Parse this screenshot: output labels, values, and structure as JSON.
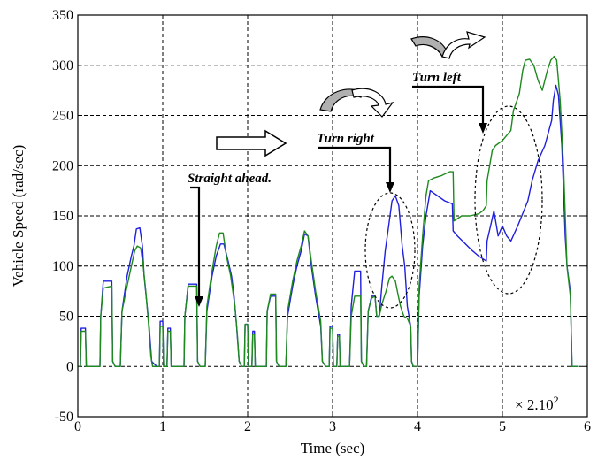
{
  "chart_data": {
    "type": "line",
    "title": "",
    "xlabel": "Time (sec)",
    "ylabel": "Vehicle Speed (rad/sec)",
    "xlim": [
      0,
      6
    ],
    "ylim": [
      -50,
      350
    ],
    "xticks": [
      0,
      1,
      2,
      3,
      4,
      5,
      6
    ],
    "yticks": [
      -50,
      0,
      50,
      100,
      150,
      200,
      250,
      300,
      350
    ],
    "grid": true,
    "x_multiplier_label": "× 2.10",
    "x_multiplier_exponent": "2",
    "annotations": [
      {
        "text": "Straight ahead.",
        "x": 1.35,
        "y": 188
      },
      {
        "text": "Turn right",
        "x": 2.95,
        "y": 224
      },
      {
        "text": "Turn left",
        "x": 4.0,
        "y": 285
      }
    ],
    "colors": {
      "series1": "#1f1fdd",
      "series2": "#1e8a1e"
    },
    "series": [
      {
        "color": "#1f1fdd",
        "points": [
          [
            0.0,
            0
          ],
          [
            0.03,
            0
          ],
          [
            0.04,
            38
          ],
          [
            0.09,
            38
          ],
          [
            0.1,
            0
          ],
          [
            0.26,
            0
          ],
          [
            0.27,
            50
          ],
          [
            0.3,
            85
          ],
          [
            0.4,
            85
          ],
          [
            0.41,
            5
          ],
          [
            0.44,
            0
          ],
          [
            0.5,
            0
          ],
          [
            0.52,
            55
          ],
          [
            0.58,
            90
          ],
          [
            0.63,
            110
          ],
          [
            0.66,
            120
          ],
          [
            0.69,
            137
          ],
          [
            0.73,
            138
          ],
          [
            0.76,
            120
          ],
          [
            0.78,
            90
          ],
          [
            0.81,
            65
          ],
          [
            0.84,
            40
          ],
          [
            0.87,
            5
          ],
          [
            0.93,
            0
          ],
          [
            0.96,
            0
          ],
          [
            0.97,
            45
          ],
          [
            1.0,
            45
          ],
          [
            1.01,
            0
          ],
          [
            1.05,
            0
          ],
          [
            1.06,
            38
          ],
          [
            1.09,
            38
          ],
          [
            1.1,
            0
          ],
          [
            1.25,
            0
          ],
          [
            1.26,
            50
          ],
          [
            1.3,
            82
          ],
          [
            1.4,
            82
          ],
          [
            1.41,
            5
          ],
          [
            1.44,
            0
          ],
          [
            1.5,
            0
          ],
          [
            1.52,
            55
          ],
          [
            1.58,
            90
          ],
          [
            1.63,
            110
          ],
          [
            1.68,
            122
          ],
          [
            1.72,
            122
          ],
          [
            1.77,
            105
          ],
          [
            1.81,
            90
          ],
          [
            1.84,
            70
          ],
          [
            1.87,
            40
          ],
          [
            1.9,
            5
          ],
          [
            1.93,
            0
          ],
          [
            1.96,
            0
          ],
          [
            1.97,
            42
          ],
          [
            2.0,
            42
          ],
          [
            2.01,
            0
          ],
          [
            2.05,
            0
          ],
          [
            2.06,
            35
          ],
          [
            2.08,
            35
          ],
          [
            2.09,
            0
          ],
          [
            2.22,
            0
          ],
          [
            2.23,
            55
          ],
          [
            2.27,
            70
          ],
          [
            2.33,
            70
          ],
          [
            2.34,
            5
          ],
          [
            2.37,
            0
          ],
          [
            2.45,
            0
          ],
          [
            2.47,
            50
          ],
          [
            2.53,
            80
          ],
          [
            2.58,
            100
          ],
          [
            2.63,
            115
          ],
          [
            2.67,
            132
          ],
          [
            2.71,
            130
          ],
          [
            2.75,
            100
          ],
          [
            2.8,
            70
          ],
          [
            2.86,
            40
          ],
          [
            2.88,
            5
          ],
          [
            2.92,
            0
          ],
          [
            2.96,
            0
          ],
          [
            2.97,
            40
          ],
          [
            3.0,
            40
          ],
          [
            3.01,
            0
          ],
          [
            3.05,
            0
          ],
          [
            3.06,
            32
          ],
          [
            3.08,
            32
          ],
          [
            3.09,
            0
          ],
          [
            3.2,
            0
          ],
          [
            3.22,
            60
          ],
          [
            3.26,
            95
          ],
          [
            3.33,
            95
          ],
          [
            3.34,
            5
          ],
          [
            3.37,
            0
          ],
          [
            3.4,
            0
          ],
          [
            3.42,
            55
          ],
          [
            3.46,
            70
          ],
          [
            3.5,
            70
          ],
          [
            3.52,
            50
          ],
          [
            3.55,
            50
          ],
          [
            3.58,
            80
          ],
          [
            3.62,
            115
          ],
          [
            3.66,
            140
          ],
          [
            3.7,
            165
          ],
          [
            3.74,
            170
          ],
          [
            3.78,
            160
          ],
          [
            3.82,
            120
          ],
          [
            3.85,
            100
          ],
          [
            3.88,
            60
          ],
          [
            3.92,
            40
          ],
          [
            3.93,
            5
          ],
          [
            3.95,
            0
          ],
          [
            4.0,
            0
          ],
          [
            4.02,
            70
          ],
          [
            4.06,
            120
          ],
          [
            4.1,
            150
          ],
          [
            4.15,
            175
          ],
          [
            4.32,
            165
          ],
          [
            4.41,
            162
          ],
          [
            4.42,
            135
          ],
          [
            4.47,
            130
          ],
          [
            4.53,
            125
          ],
          [
            4.59,
            120
          ],
          [
            4.65,
            115
          ],
          [
            4.72,
            110
          ],
          [
            4.81,
            105
          ],
          [
            4.82,
            125
          ],
          [
            4.86,
            140
          ],
          [
            4.9,
            155
          ],
          [
            4.95,
            130
          ],
          [
            5.0,
            140
          ],
          [
            5.05,
            130
          ],
          [
            5.1,
            125
          ],
          [
            5.18,
            140
          ],
          [
            5.3,
            165
          ],
          [
            5.35,
            185
          ],
          [
            5.42,
            205
          ],
          [
            5.5,
            220
          ],
          [
            5.58,
            245
          ],
          [
            5.6,
            265
          ],
          [
            5.63,
            280
          ],
          [
            5.66,
            270
          ],
          [
            5.7,
            220
          ],
          [
            5.74,
            130
          ],
          [
            5.76,
            100
          ],
          [
            5.8,
            75
          ],
          [
            5.82,
            0
          ],
          [
            5.9,
            0
          ]
        ]
      },
      {
        "color": "#1e8a1e",
        "points": [
          [
            0.0,
            0
          ],
          [
            0.03,
            0
          ],
          [
            0.04,
            35
          ],
          [
            0.09,
            35
          ],
          [
            0.1,
            0
          ],
          [
            0.26,
            0
          ],
          [
            0.27,
            50
          ],
          [
            0.3,
            78
          ],
          [
            0.4,
            80
          ],
          [
            0.41,
            5
          ],
          [
            0.44,
            0
          ],
          [
            0.5,
            0
          ],
          [
            0.52,
            55
          ],
          [
            0.58,
            80
          ],
          [
            0.63,
            100
          ],
          [
            0.67,
            115
          ],
          [
            0.7,
            120
          ],
          [
            0.74,
            118
          ],
          [
            0.77,
            100
          ],
          [
            0.8,
            75
          ],
          [
            0.83,
            45
          ],
          [
            0.86,
            10
          ],
          [
            0.88,
            0
          ],
          [
            0.96,
            0
          ],
          [
            0.97,
            40
          ],
          [
            1.0,
            40
          ],
          [
            1.01,
            0
          ],
          [
            1.05,
            0
          ],
          [
            1.06,
            35
          ],
          [
            1.09,
            35
          ],
          [
            1.1,
            0
          ],
          [
            1.25,
            0
          ],
          [
            1.26,
            50
          ],
          [
            1.3,
            80
          ],
          [
            1.4,
            80
          ],
          [
            1.41,
            5
          ],
          [
            1.44,
            0
          ],
          [
            1.5,
            0
          ],
          [
            1.52,
            60
          ],
          [
            1.58,
            95
          ],
          [
            1.63,
            120
          ],
          [
            1.67,
            133
          ],
          [
            1.71,
            133
          ],
          [
            1.75,
            110
          ],
          [
            1.8,
            90
          ],
          [
            1.85,
            60
          ],
          [
            1.88,
            30
          ],
          [
            1.9,
            5
          ],
          [
            1.93,
            0
          ],
          [
            1.96,
            0
          ],
          [
            1.97,
            42
          ],
          [
            2.0,
            42
          ],
          [
            2.01,
            0
          ],
          [
            2.05,
            0
          ],
          [
            2.06,
            32
          ],
          [
            2.08,
            32
          ],
          [
            2.09,
            0
          ],
          [
            2.22,
            0
          ],
          [
            2.23,
            55
          ],
          [
            2.27,
            72
          ],
          [
            2.33,
            72
          ],
          [
            2.34,
            5
          ],
          [
            2.37,
            0
          ],
          [
            2.45,
            0
          ],
          [
            2.47,
            55
          ],
          [
            2.53,
            85
          ],
          [
            2.58,
            105
          ],
          [
            2.63,
            120
          ],
          [
            2.67,
            135
          ],
          [
            2.71,
            130
          ],
          [
            2.75,
            105
          ],
          [
            2.8,
            75
          ],
          [
            2.86,
            45
          ],
          [
            2.88,
            5
          ],
          [
            2.92,
            0
          ],
          [
            2.96,
            0
          ],
          [
            2.97,
            38
          ],
          [
            3.0,
            38
          ],
          [
            3.01,
            0
          ],
          [
            3.05,
            0
          ],
          [
            3.06,
            30
          ],
          [
            3.08,
            30
          ],
          [
            3.09,
            0
          ],
          [
            3.2,
            0
          ],
          [
            3.22,
            50
          ],
          [
            3.26,
            70
          ],
          [
            3.33,
            70
          ],
          [
            3.34,
            5
          ],
          [
            3.37,
            0
          ],
          [
            3.4,
            0
          ],
          [
            3.42,
            55
          ],
          [
            3.46,
            68
          ],
          [
            3.5,
            70
          ],
          [
            3.52,
            50
          ],
          [
            3.55,
            50
          ],
          [
            3.58,
            62
          ],
          [
            3.63,
            75
          ],
          [
            3.67,
            88
          ],
          [
            3.7,
            90
          ],
          [
            3.74,
            85
          ],
          [
            3.77,
            72
          ],
          [
            3.8,
            60
          ],
          [
            3.84,
            50
          ],
          [
            3.88,
            48
          ],
          [
            3.92,
            40
          ],
          [
            3.93,
            5
          ],
          [
            3.95,
            0
          ],
          [
            4.0,
            0
          ],
          [
            4.02,
            80
          ],
          [
            4.06,
            130
          ],
          [
            4.1,
            170
          ],
          [
            4.13,
            185
          ],
          [
            4.2,
            188
          ],
          [
            4.28,
            190
          ],
          [
            4.33,
            192
          ],
          [
            4.38,
            194
          ],
          [
            4.42,
            194
          ],
          [
            4.43,
            145
          ],
          [
            4.52,
            150
          ],
          [
            4.62,
            150
          ],
          [
            4.72,
            152
          ],
          [
            4.77,
            155
          ],
          [
            4.81,
            160
          ],
          [
            4.82,
            185
          ],
          [
            4.85,
            200
          ],
          [
            4.88,
            215
          ],
          [
            4.92,
            220
          ],
          [
            5.0,
            225
          ],
          [
            5.05,
            230
          ],
          [
            5.1,
            235
          ],
          [
            5.13,
            255
          ],
          [
            5.16,
            262
          ],
          [
            5.2,
            272
          ],
          [
            5.24,
            295
          ],
          [
            5.27,
            305
          ],
          [
            5.32,
            306
          ],
          [
            5.37,
            300
          ],
          [
            5.42,
            285
          ],
          [
            5.47,
            275
          ],
          [
            5.5,
            285
          ],
          [
            5.53,
            295
          ],
          [
            5.57,
            305
          ],
          [
            5.61,
            309
          ],
          [
            5.64,
            305
          ],
          [
            5.68,
            265
          ],
          [
            5.72,
            200
          ],
          [
            5.76,
            100
          ],
          [
            5.8,
            70
          ],
          [
            5.82,
            0
          ],
          [
            5.9,
            0
          ]
        ]
      }
    ]
  }
}
